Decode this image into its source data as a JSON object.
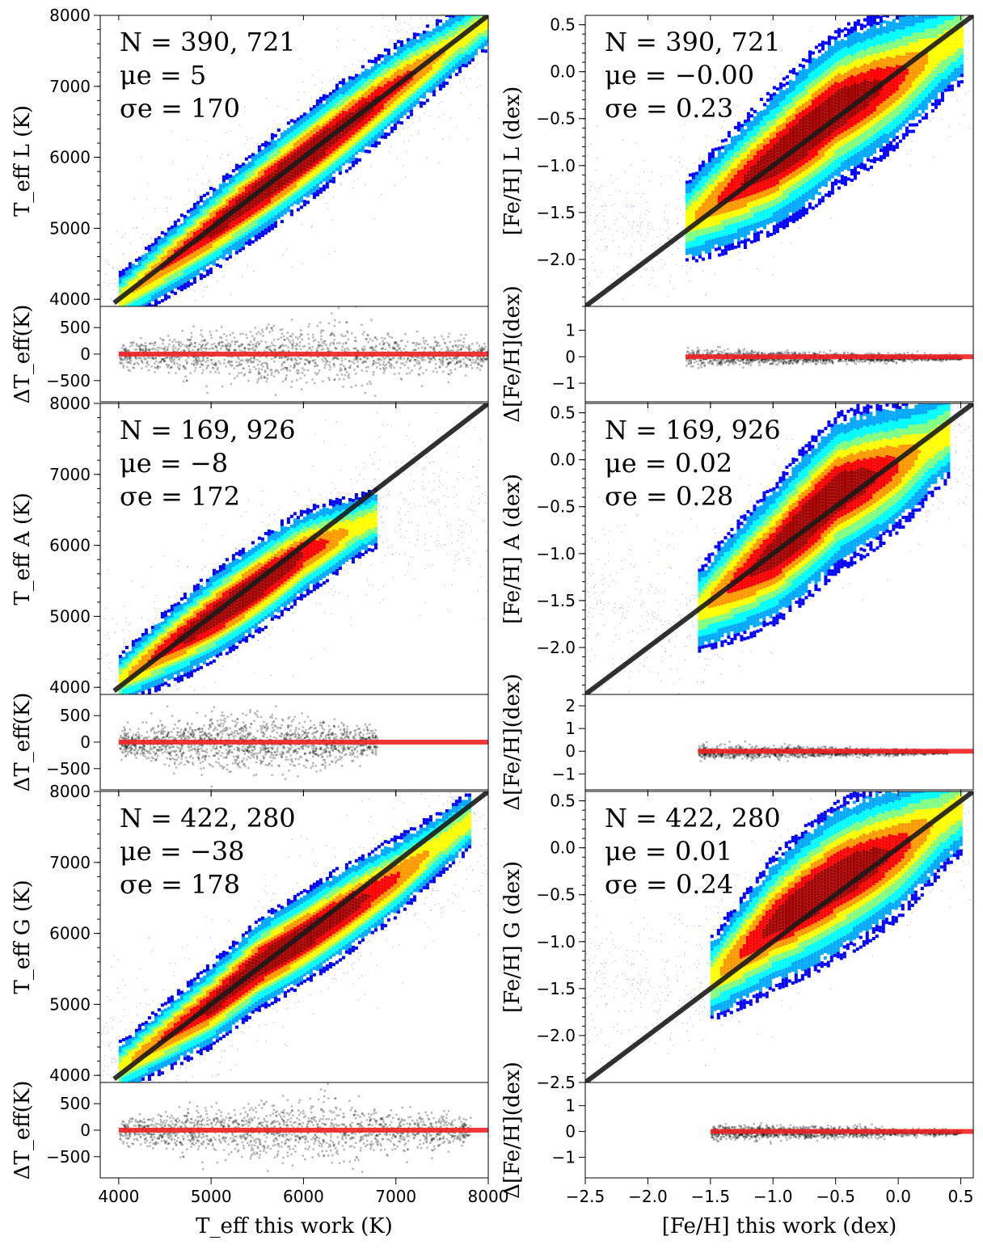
{
  "chart_data": [
    {
      "type": "scatter",
      "panel": "teff-L",
      "ylabel": "T_eff L (K)",
      "resid_label": "ΔT_eff(K)",
      "xlim": [
        3800,
        8000
      ],
      "ylim": [
        3900,
        8000
      ],
      "resid_ylim": [
        -900,
        900
      ],
      "xticks": [
        4000,
        5000,
        6000,
        7000,
        8000
      ],
      "yticks": [
        4000,
        5000,
        6000,
        7000,
        8000
      ],
      "resid_yticks": [
        -500,
        0,
        500
      ],
      "annotation": {
        "N": "N = 390, 721",
        "mu": "μe = 5",
        "sigma": "σe = 170"
      },
      "one_to_one": [
        [
          3950,
          3950
        ],
        [
          8000,
          8000
        ]
      ],
      "density_ridge": [
        [
          4000,
          4000
        ],
        [
          5000,
          4990
        ],
        [
          6000,
          6000
        ],
        [
          7000,
          7020
        ],
        [
          8000,
          7950
        ]
      ]
    },
    {
      "type": "scatter",
      "panel": "feh-L",
      "ylabel": "[Fe/H] L (dex)",
      "resid_label": "Δ[Fe/H](dex)",
      "xlim": [
        -2.5,
        0.6
      ],
      "ylim": [
        -2.5,
        0.6
      ],
      "resid_ylim": [
        -1.7,
        1.9
      ],
      "xticks": [
        -2.5,
        -2.0,
        -1.5,
        -1.0,
        -0.5,
        0.0,
        0.5
      ],
      "yticks": [
        -2.0,
        -1.5,
        -1.0,
        -0.5,
        0.0,
        0.5
      ],
      "resid_yticks": [
        -1,
        0,
        1
      ],
      "annotation": {
        "N": "N = 390, 721",
        "mu": "μe = −0.00",
        "sigma": "σe = 0.23"
      },
      "one_to_one": [
        [
          -2.5,
          -2.5
        ],
        [
          0.6,
          0.6
        ]
      ],
      "density_ridge": [
        [
          -1.7,
          -1.6
        ],
        [
          -1.0,
          -0.95
        ],
        [
          -0.5,
          -0.4
        ],
        [
          0.0,
          -0.05
        ],
        [
          0.5,
          0.4
        ]
      ]
    },
    {
      "type": "scatter",
      "panel": "teff-A",
      "ylabel": "T_eff A (K)",
      "resid_label": "ΔT_eff(K)",
      "xlim": [
        3800,
        8000
      ],
      "ylim": [
        3900,
        8000
      ],
      "resid_ylim": [
        -900,
        900
      ],
      "xticks": [
        4000,
        5000,
        6000,
        7000,
        8000
      ],
      "yticks": [
        4000,
        5000,
        6000,
        7000,
        8000
      ],
      "resid_yticks": [
        -500,
        0,
        500
      ],
      "annotation": {
        "N": "N = 169, 926",
        "mu": "μe = −8",
        "sigma": "σe = 172"
      },
      "one_to_one": [
        [
          3950,
          3950
        ],
        [
          8000,
          8000
        ]
      ],
      "density_ridge": [
        [
          4000,
          4100
        ],
        [
          4500,
          4550
        ],
        [
          5000,
          4980
        ],
        [
          6000,
          5900
        ],
        [
          6800,
          6400
        ]
      ]
    },
    {
      "type": "scatter",
      "panel": "feh-A",
      "ylabel": "[Fe/H] A (dex)",
      "resid_label": "Δ[Fe/H](dex)",
      "xlim": [
        -2.5,
        0.6
      ],
      "ylim": [
        -2.5,
        0.6
      ],
      "resid_ylim": [
        -1.7,
        2.5
      ],
      "xticks": [
        -2.5,
        -2.0,
        -1.5,
        -1.0,
        -0.5,
        0.0,
        0.5
      ],
      "yticks": [
        -2.0,
        -1.5,
        -1.0,
        -0.5,
        0.0,
        0.5
      ],
      "resid_yticks": [
        -1,
        0,
        1,
        2
      ],
      "annotation": {
        "N": "N = 169, 926",
        "mu": "μe = 0.02",
        "sigma": "σe = 0.28"
      },
      "one_to_one": [
        [
          -2.5,
          -2.5
        ],
        [
          0.6,
          0.6
        ]
      ],
      "density_ridge": [
        [
          -1.6,
          -1.6
        ],
        [
          -1.0,
          -1.0
        ],
        [
          -0.5,
          -0.35
        ],
        [
          0.0,
          -0.05
        ],
        [
          0.4,
          0.3
        ]
      ]
    },
    {
      "type": "scatter",
      "panel": "teff-G",
      "ylabel": "T_eff G (K)",
      "resid_label": "ΔT_eff(K)",
      "xlim": [
        3800,
        8000
      ],
      "ylim": [
        3900,
        8000
      ],
      "resid_ylim": [
        -900,
        900
      ],
      "xticks": [
        4000,
        5000,
        6000,
        7000,
        8000
      ],
      "yticks": [
        4000,
        5000,
        6000,
        7000,
        8000
      ],
      "resid_yticks": [
        -500,
        0,
        500
      ],
      "annotation": {
        "N": "N = 422, 280",
        "mu": "μe = −38",
        "sigma": "σe = 178"
      },
      "xlabel": "T_eff this work (K)",
      "one_to_one": [
        [
          3950,
          3950
        ],
        [
          8000,
          8000
        ]
      ],
      "density_ridge": [
        [
          4000,
          4100
        ],
        [
          5000,
          5000
        ],
        [
          5500,
          5550
        ],
        [
          6000,
          5950
        ],
        [
          7000,
          6800
        ],
        [
          7800,
          7600
        ]
      ]
    },
    {
      "type": "scatter",
      "panel": "feh-G",
      "ylabel": "[Fe/H] G (dex)",
      "resid_label": "Δ[Fe/H](dex)",
      "xlim": [
        -2.5,
        0.6
      ],
      "ylim": [
        -2.5,
        0.6
      ],
      "resid_ylim": [
        -1.8,
        1.9
      ],
      "xticks": [
        -2.5,
        -2.0,
        -1.5,
        -1.0,
        -0.5,
        0.0,
        0.5
      ],
      "yticks": [
        -2.5,
        -2.0,
        -1.5,
        -1.0,
        -0.5,
        0.0,
        0.5
      ],
      "resid_yticks": [
        -1,
        0,
        1
      ],
      "annotation": {
        "N": "N = 422, 280",
        "mu": "μe = 0.01",
        "sigma": "σe = 0.24"
      },
      "xlabel": "[Fe/H] this work (dex)",
      "one_to_one": [
        [
          -2.5,
          -2.5
        ],
        [
          0.6,
          0.6
        ]
      ],
      "density_ridge": [
        [
          -1.5,
          -1.4
        ],
        [
          -1.0,
          -0.8
        ],
        [
          -0.5,
          -0.35
        ],
        [
          0.0,
          0.0
        ],
        [
          0.5,
          0.45
        ]
      ]
    }
  ],
  "colors": {
    "one_to_one": "#1a1a1a",
    "zero_line": "#ee2222",
    "residual_points": "#000000",
    "sparse_points": "#3333cc",
    "density_colormap": [
      "#0000ff",
      "#00a8ff",
      "#00ffff",
      "#80ff80",
      "#ffff00",
      "#ff9900",
      "#ff0000",
      "#a00000"
    ]
  }
}
